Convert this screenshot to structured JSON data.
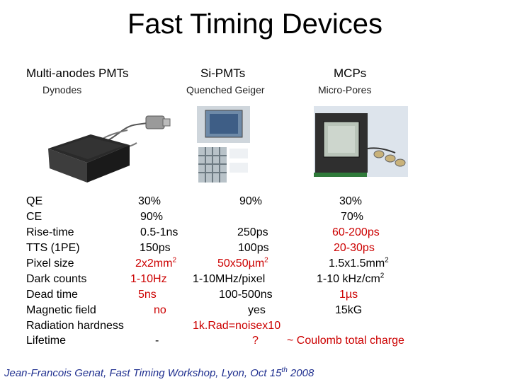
{
  "slide": {
    "title": "Fast Timing Devices",
    "footer": {
      "prefix": "Jean-Francois Genat, Fast Timing Workshop, Lyon,   Oct 15",
      "sup": "th",
      "suffix": " 2008"
    }
  },
  "columns": [
    {
      "header": "Multi-anodes PMTs",
      "sub": "Dynodes",
      "image": "multianode-pmt-photo"
    },
    {
      "header": "Si-PMTs",
      "sub": "Quenched Geiger",
      "image": "si-pmt-photo"
    },
    {
      "header": "MCPs",
      "sub": "Micro-Pores",
      "image": "mcp-photo"
    }
  ],
  "rows": {
    "qe": {
      "label": "QE",
      "pmt": "30%",
      "sipm": "90%",
      "mcp": "30%"
    },
    "ce": {
      "label": "CE",
      "pmt": "90%",
      "mcp": "70%"
    },
    "rise": {
      "label": "Rise-time",
      "pmt": "0.5-1ns",
      "sipm": "250ps",
      "mcp": "60-200ps"
    },
    "tts": {
      "label": "TTS (1PE)",
      "pmt": "150ps",
      "sipm": "100ps",
      "mcp": "20-30ps"
    },
    "pixel": {
      "label": "Pixel size",
      "pmt": "2x2mm",
      "pmt_sup": "2",
      "sipm": "50x50µm",
      "sipm_sup": "2",
      "mcp": "1.5x1.5mm",
      "mcp_sup": "2"
    },
    "dark": {
      "label": "Dark counts",
      "pmt": "1-10Hz",
      "sipm": "1-10MHz/pixel",
      "mcp": "1-10 kHz/cm",
      "mcp_sup": "2"
    },
    "dead": {
      "label": "Dead time",
      "pmt": "5ns",
      "sipm": "100-500ns",
      "mcp": "1µs"
    },
    "mag": {
      "label": "Magnetic field",
      "pmt": "no",
      "sipm": "yes",
      "mcp": "15kG"
    },
    "rad": {
      "label": "Radiation hardness",
      "sipm": "1k.Rad=noisex10"
    },
    "life": {
      "label": "Lifetime",
      "pmt": "-",
      "sipm": "?",
      "mcp": "~ Coulomb total charge"
    }
  },
  "colors": {
    "highlight": "#cc0000",
    "footer": "#1f2f8f"
  }
}
